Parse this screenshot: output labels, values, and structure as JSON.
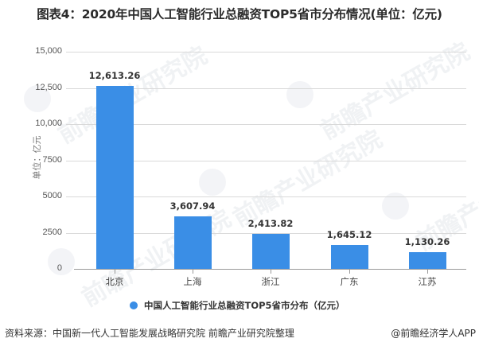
{
  "title": "图表4：2020年中国人工智能行业总融资TOP5省市分布情况(单位：亿元)",
  "chart_data": {
    "type": "bar",
    "title": "图表4：2020年中国人工智能行业总融资TOP5省市分布情况(单位：亿元)",
    "categories": [
      "北京",
      "上海",
      "浙江",
      "广东",
      "江苏"
    ],
    "series": [
      {
        "name": "中国人工智能行业总融资TOP5省市分布（亿元）",
        "values": [
          12613.26,
          3607.94,
          2413.82,
          1645.12,
          1130.26
        ],
        "labels": [
          "12,613.26",
          "3,607.94",
          "2,413.82",
          "1,645.12",
          "1,130.26"
        ],
        "color": "#3a8ee6"
      }
    ],
    "xlabel": "",
    "ylabel": "单位：亿元",
    "ylim": [
      0,
      15000
    ],
    "yticks": [
      "0",
      "2500",
      "5000",
      "7500",
      "10,000",
      "12,500",
      "15,000"
    ],
    "grid": true,
    "legend_position": "bottom"
  },
  "legend": {
    "label": "中国人工智能行业总融资TOP5省市分布（亿元）"
  },
  "footer": {
    "source": "资料来源：中国新一代人工智能发展战略研究院 前瞻产业研究院整理",
    "credit": "@前瞻经济学人APP"
  },
  "watermark": {
    "text": "前瞻产业研究院"
  }
}
